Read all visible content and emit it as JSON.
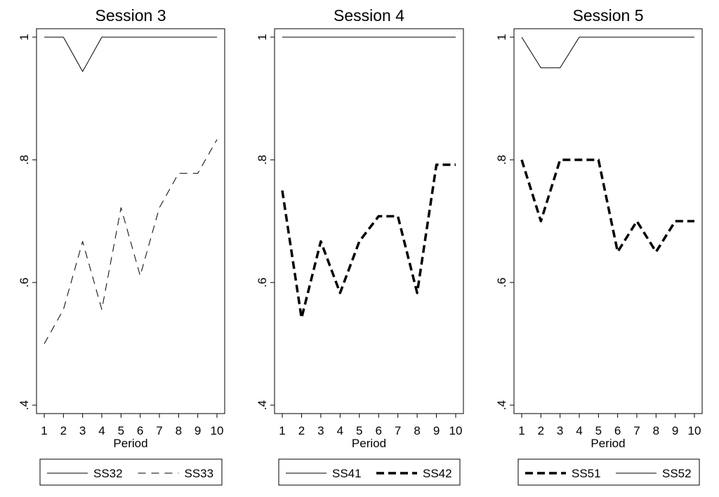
{
  "chart_data": [
    {
      "type": "line",
      "title": "Session 3",
      "xlabel": "Period",
      "ylabel": "",
      "x": [
        1,
        2,
        3,
        4,
        5,
        6,
        7,
        8,
        9,
        10
      ],
      "xticks": [
        "1",
        "2",
        "3",
        "4",
        "5",
        "6",
        "7",
        "8",
        "9",
        "10"
      ],
      "yticks": [
        ".4",
        ".6",
        ".8",
        "1"
      ],
      "ylim": [
        0.4,
        1.0
      ],
      "legend_position": "bottom",
      "series": [
        {
          "name": "SS32",
          "style": "solid-thin",
          "values": [
            1.0,
            1.0,
            0.944,
            1.0,
            1.0,
            1.0,
            1.0,
            1.0,
            1.0,
            1.0
          ]
        },
        {
          "name": "SS33",
          "style": "dashed-thin",
          "values": [
            0.5,
            0.556,
            0.667,
            0.556,
            0.722,
            0.611,
            0.722,
            0.778,
            0.778,
            0.833
          ]
        }
      ]
    },
    {
      "type": "line",
      "title": "Session 4",
      "xlabel": "Period",
      "ylabel": "",
      "x": [
        1,
        2,
        3,
        4,
        5,
        6,
        7,
        8,
        9,
        10
      ],
      "xticks": [
        "1",
        "2",
        "3",
        "4",
        "5",
        "6",
        "7",
        "8",
        "9",
        "10"
      ],
      "yticks": [
        ".4",
        ".6",
        ".8",
        "1"
      ],
      "ylim": [
        0.4,
        1.0
      ],
      "legend_position": "bottom",
      "series": [
        {
          "name": "SS41",
          "style": "solid-thin",
          "values": [
            1.0,
            1.0,
            1.0,
            1.0,
            1.0,
            1.0,
            1.0,
            1.0,
            1.0,
            1.0
          ]
        },
        {
          "name": "SS42",
          "style": "dashed-thick",
          "values": [
            0.75,
            0.542,
            0.667,
            0.583,
            0.667,
            0.708,
            0.708,
            0.583,
            0.792,
            0.792
          ]
        }
      ]
    },
    {
      "type": "line",
      "title": "Session 5",
      "xlabel": "Period",
      "ylabel": "",
      "x": [
        1,
        2,
        3,
        4,
        5,
        6,
        7,
        8,
        9,
        10
      ],
      "xticks": [
        "1",
        "2",
        "3",
        "4",
        "5",
        "6",
        "7",
        "8",
        "9",
        "10"
      ],
      "yticks": [
        ".4",
        ".6",
        ".8",
        "1"
      ],
      "ylim": [
        0.4,
        1.0
      ],
      "legend_position": "bottom",
      "series": [
        {
          "name": "SS51",
          "style": "dashed-thick",
          "values": [
            0.8,
            0.7,
            0.8,
            0.8,
            0.8,
            0.65,
            0.7,
            0.65,
            0.7,
            0.7
          ]
        },
        {
          "name": "SS52",
          "style": "solid-thin",
          "values": [
            1.0,
            0.95,
            0.95,
            1.0,
            1.0,
            1.0,
            1.0,
            1.0,
            1.0,
            1.0
          ]
        }
      ]
    }
  ]
}
